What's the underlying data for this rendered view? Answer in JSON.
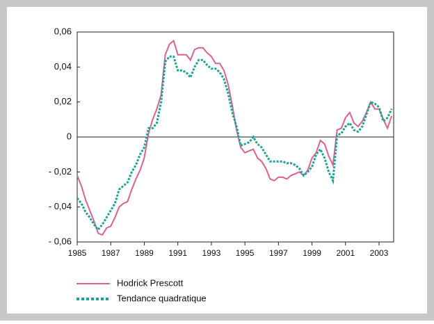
{
  "chart_data": {
    "type": "line",
    "x": [
      1985,
      1985.25,
      1985.5,
      1985.75,
      1986,
      1986.25,
      1986.5,
      1986.75,
      1987,
      1987.25,
      1987.5,
      1987.75,
      1988,
      1988.25,
      1988.5,
      1988.75,
      1989,
      1989.25,
      1989.5,
      1989.75,
      1990,
      1990.25,
      1990.5,
      1990.75,
      1991,
      1991.25,
      1991.5,
      1991.75,
      1992,
      1992.25,
      1992.5,
      1992.75,
      1993,
      1993.25,
      1993.5,
      1993.75,
      1994,
      1994.25,
      1994.5,
      1994.75,
      1995,
      1995.25,
      1995.5,
      1995.75,
      1996,
      1996.25,
      1996.5,
      1996.75,
      1997,
      1997.25,
      1997.5,
      1997.75,
      1998,
      1998.25,
      1998.5,
      1998.75,
      1999,
      1999.25,
      1999.5,
      1999.75,
      2000,
      2000.25,
      2000.5,
      2000.75,
      2001,
      2001.25,
      2001.5,
      2001.75,
      2002,
      2002.25,
      2002.5,
      2002.75,
      2003,
      2003.25,
      2003.5,
      2003.75
    ],
    "series": [
      {
        "name": "Hodrick Prescott",
        "color": "#e0608c",
        "dash": false,
        "values": [
          -0.022,
          -0.028,
          -0.036,
          -0.042,
          -0.048,
          -0.055,
          -0.056,
          -0.052,
          -0.051,
          -0.046,
          -0.04,
          -0.038,
          -0.037,
          -0.03,
          -0.024,
          -0.019,
          -0.012,
          0.002,
          0.01,
          0.016,
          0.024,
          0.047,
          0.053,
          0.055,
          0.047,
          0.047,
          0.047,
          0.044,
          0.05,
          0.051,
          0.051,
          0.048,
          0.046,
          0.042,
          0.042,
          0.038,
          0.03,
          0.018,
          0.004,
          -0.006,
          -0.009,
          -0.008,
          -0.007,
          -0.012,
          -0.014,
          -0.018,
          -0.024,
          -0.025,
          -0.023,
          -0.023,
          -0.024,
          -0.022,
          -0.021,
          -0.02,
          -0.022,
          -0.019,
          -0.012,
          -0.009,
          -0.002,
          -0.004,
          -0.011,
          -0.016,
          0.004,
          0.005,
          0.011,
          0.014,
          0.008,
          0.006,
          0.009,
          0.014,
          0.02,
          0.016,
          0.016,
          0.01,
          0.005,
          0.012
        ]
      },
      {
        "name": "Tendance quadratique",
        "color": "#1aa39a",
        "dash": true,
        "values": [
          -0.035,
          -0.038,
          -0.043,
          -0.046,
          -0.05,
          -0.053,
          -0.05,
          -0.046,
          -0.042,
          -0.038,
          -0.03,
          -0.028,
          -0.026,
          -0.02,
          -0.016,
          -0.01,
          -0.006,
          0.005,
          0.005,
          0.008,
          0.02,
          0.043,
          0.046,
          0.046,
          0.038,
          0.038,
          0.037,
          0.034,
          0.04,
          0.044,
          0.044,
          0.041,
          0.039,
          0.039,
          0.037,
          0.033,
          0.025,
          0.014,
          0.006,
          -0.005,
          -0.004,
          -0.003,
          0.0,
          -0.004,
          -0.006,
          -0.01,
          -0.014,
          -0.014,
          -0.014,
          -0.014,
          -0.015,
          -0.015,
          -0.016,
          -0.018,
          -0.022,
          -0.02,
          -0.017,
          -0.01,
          -0.007,
          -0.012,
          -0.02,
          -0.025,
          0.001,
          0.002,
          0.006,
          0.008,
          0.004,
          0.003,
          0.006,
          0.013,
          0.02,
          0.019,
          0.017,
          0.009,
          0.011,
          0.016
        ]
      }
    ],
    "xlim": [
      1985,
      2003.87
    ],
    "xticks": [
      1985,
      1987,
      1989,
      1991,
      1993,
      1995,
      1997,
      1999,
      2001,
      2003
    ],
    "ylim": [
      -0.06,
      0.06
    ],
    "yticks": [
      {
        "value": -0.06,
        "label": "- 0,06"
      },
      {
        "value": -0.04,
        "label": "- 0,04"
      },
      {
        "value": -0.02,
        "label": "- 0,02"
      },
      0,
      {
        "value": 0.02,
        "label": "0,02"
      },
      {
        "value": 0.04,
        "label": "0,04"
      },
      {
        "value": 0.06,
        "label": "0,06"
      }
    ]
  }
}
